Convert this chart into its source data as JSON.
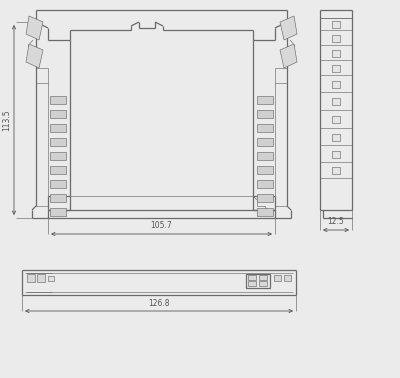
{
  "bg_color": "#ebebeb",
  "line_color": "#6a6a6a",
  "dim_color": "#555555",
  "fill_color": "#f8f8f8",
  "lw_main": 0.9,
  "lw_thin": 0.45,
  "lw_dim": 0.6,
  "font_size": 5.5,
  "dim_113_5": "113.5",
  "dim_105_7": "105.7",
  "dim_12_5": "12.5",
  "dim_126_8": "126.8"
}
